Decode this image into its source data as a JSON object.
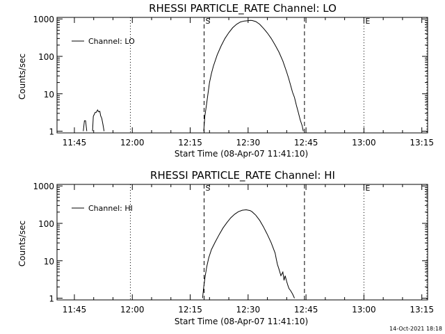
{
  "footer": {
    "timestamp": "14-Oct-2021 18:18"
  },
  "colors": {
    "background": "#ffffff",
    "foreground": "#000000"
  },
  "chart_data": [
    {
      "type": "line",
      "title": "RHESSI PARTICLE_RATE Channel: LO",
      "xlabel": "Start Time (08-Apr-07 11:41:10)",
      "ylabel": "Counts/sec",
      "yscale": "log",
      "xlim_minutes": [
        -0.5,
        95.5
      ],
      "ylim": [
        0.9,
        1100
      ],
      "xticks": [
        {
          "t": 4,
          "label": "11:45"
        },
        {
          "t": 19,
          "label": "12:00"
        },
        {
          "t": 34,
          "label": "12:15"
        },
        {
          "t": 49,
          "label": "12:30"
        },
        {
          "t": 64,
          "label": "12:45"
        },
        {
          "t": 79,
          "label": "13:00"
        },
        {
          "t": 94,
          "label": "13:15"
        }
      ],
      "yticks": [
        {
          "v": 1,
          "label": "1"
        },
        {
          "v": 10,
          "label": "10"
        },
        {
          "v": 100,
          "label": "100"
        },
        {
          "v": 1000,
          "label": "1000"
        }
      ],
      "legend": {
        "label": "Channel: LO",
        "position": "top-left"
      },
      "markers": [
        {
          "t": 18.5,
          "style": "dotted",
          "label": ""
        },
        {
          "t": 37.6,
          "style": "dashed",
          "label": "S"
        },
        {
          "t": 63.6,
          "style": "dashed",
          "label": ""
        },
        {
          "t": 79,
          "style": "dotted",
          "label": "E"
        },
        {
          "t": 95.3,
          "style": "dotted",
          "label": ""
        }
      ],
      "series": [
        {
          "name": "Channel: LO",
          "segments": [
            {
              "t": [
                6.3,
                6.6,
                6.9,
                7.2
              ],
              "v": [
                1,
                1.9,
                1.9,
                1
              ]
            },
            {
              "t": [
                8.7,
                8.9,
                9.4,
                9.7,
                10.0,
                10.3,
                10.6,
                10.8,
                11.1,
                11.4,
                11.7
              ],
              "v": [
                1,
                2.5,
                3.2,
                3.2,
                3.7,
                3.3,
                3.4,
                2.6,
                2.2,
                1.5,
                1
              ]
            },
            {
              "t": [
                37.5,
                37.8,
                38.2,
                38.6,
                39.0,
                39.5,
                40.0,
                41.0,
                42.0,
                43.0,
                44.0,
                45.0,
                46.0,
                47.0,
                48.0,
                49.0,
                49.5,
                50.0,
                51.0,
                52.0,
                53.0,
                54.0,
                55.0,
                56.0,
                57.0,
                58.0,
                59.0,
                59.5,
                60.0,
                60.5,
                61.0,
                61.5,
                62.0,
                62.5,
                63.0,
                63.3
              ],
              "v": [
                1,
                2.5,
                5,
                10,
                20,
                35,
                55,
                110,
                190,
                300,
                430,
                580,
                720,
                830,
                880,
                900,
                920,
                910,
                850,
                720,
                560,
                420,
                300,
                200,
                130,
                75,
                38,
                26,
                17,
                11,
                8,
                5,
                3.2,
                2,
                1.4,
                1
              ]
            }
          ]
        }
      ]
    },
    {
      "type": "line",
      "title": "RHESSI PARTICLE_RATE Channel: HI",
      "xlabel": "Start Time (08-Apr-07 11:41:10)",
      "ylabel": "Counts/sec",
      "yscale": "log",
      "xlim_minutes": [
        -0.5,
        95.5
      ],
      "ylim": [
        0.9,
        1100
      ],
      "xticks": [
        {
          "t": 4,
          "label": "11:45"
        },
        {
          "t": 19,
          "label": "12:00"
        },
        {
          "t": 34,
          "label": "12:15"
        },
        {
          "t": 49,
          "label": "12:30"
        },
        {
          "t": 64,
          "label": "12:45"
        },
        {
          "t": 79,
          "label": "13:00"
        },
        {
          "t": 94,
          "label": "13:15"
        }
      ],
      "yticks": [
        {
          "v": 1,
          "label": "1"
        },
        {
          "v": 10,
          "label": "10"
        },
        {
          "v": 100,
          "label": "100"
        },
        {
          "v": 1000,
          "label": "1000"
        }
      ],
      "legend": {
        "label": "Channel: HI",
        "position": "top-left"
      },
      "markers": [
        {
          "t": 18.5,
          "style": "dotted",
          "label": ""
        },
        {
          "t": 37.6,
          "style": "dashed",
          "label": "S"
        },
        {
          "t": 63.6,
          "style": "dashed",
          "label": ""
        },
        {
          "t": 79,
          "style": "dotted",
          "label": "E"
        },
        {
          "t": 95.3,
          "style": "dotted",
          "label": ""
        }
      ],
      "series": [
        {
          "name": "Channel: HI",
          "segments": [
            {
              "t": [
                37.2,
                37.5,
                37.9,
                38.3,
                38.8,
                39.5,
                40.5,
                41.5,
                42.5,
                43.5,
                44.5,
                45.5,
                46.5,
                47.5,
                48.5,
                49.5,
                50.0,
                51.0,
                52.0,
                53.0,
                54.0,
                55.0,
                55.5,
                56.0,
                56.3,
                56.6,
                57.0,
                57.5,
                58.0,
                58.3,
                58.6,
                59.0,
                59.3,
                59.6,
                60.0,
                60.5,
                61.0
              ],
              "v": [
                1,
                2,
                4,
                7,
                12,
                20,
                32,
                50,
                75,
                105,
                140,
                175,
                205,
                225,
                230,
                220,
                205,
                165,
                120,
                80,
                50,
                30,
                22,
                16,
                11,
                8,
                6,
                4,
                5,
                3,
                4,
                2.8,
                2.2,
                1.8,
                1.6,
                1.3,
                1
              ]
            }
          ]
        }
      ]
    }
  ]
}
